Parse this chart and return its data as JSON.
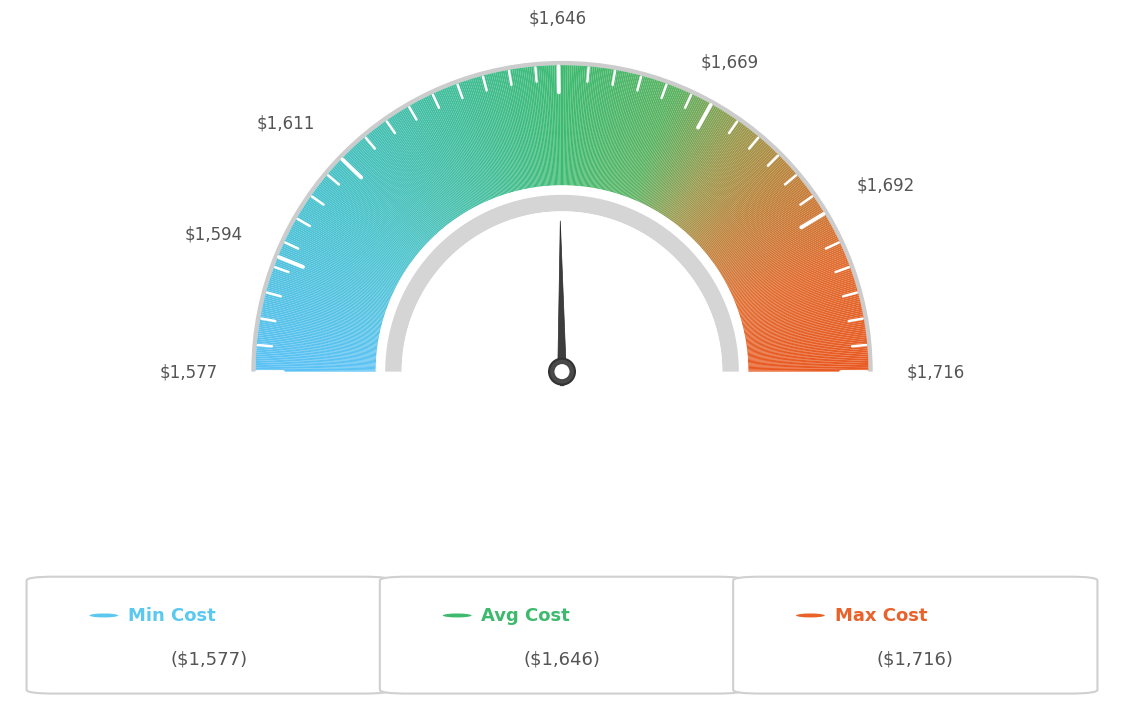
{
  "min_val": 1577,
  "avg_val": 1646,
  "max_val": 1716,
  "tick_labels": [
    "$1,577",
    "$1,594",
    "$1,611",
    "$1,646",
    "$1,669",
    "$1,692",
    "$1,716"
  ],
  "tick_values": [
    1577,
    1594,
    1611,
    1646,
    1669,
    1692,
    1716
  ],
  "legend_min_label": "Min Cost",
  "legend_avg_label": "Avg Cost",
  "legend_max_label": "Max Cost",
  "legend_min_value": "($1,577)",
  "legend_avg_value": "($1,646)",
  "legend_max_value": "($1,716)",
  "min_color": "#5bc8f0",
  "avg_color": "#3dba6e",
  "max_color": "#e8622a",
  "background_color": "#ffffff",
  "color_stops": [
    [
      0.0,
      [
        0.36,
        0.76,
        0.96
      ]
    ],
    [
      0.2,
      [
        0.28,
        0.76,
        0.8
      ]
    ],
    [
      0.38,
      [
        0.25,
        0.74,
        0.6
      ]
    ],
    [
      0.5,
      [
        0.24,
        0.73,
        0.44
      ]
    ],
    [
      0.62,
      [
        0.35,
        0.7,
        0.38
      ]
    ],
    [
      0.7,
      [
        0.6,
        0.6,
        0.3
      ]
    ],
    [
      0.78,
      [
        0.75,
        0.5,
        0.22
      ]
    ],
    [
      0.88,
      [
        0.88,
        0.42,
        0.18
      ]
    ],
    [
      1.0,
      [
        0.91,
        0.35,
        0.13
      ]
    ]
  ]
}
